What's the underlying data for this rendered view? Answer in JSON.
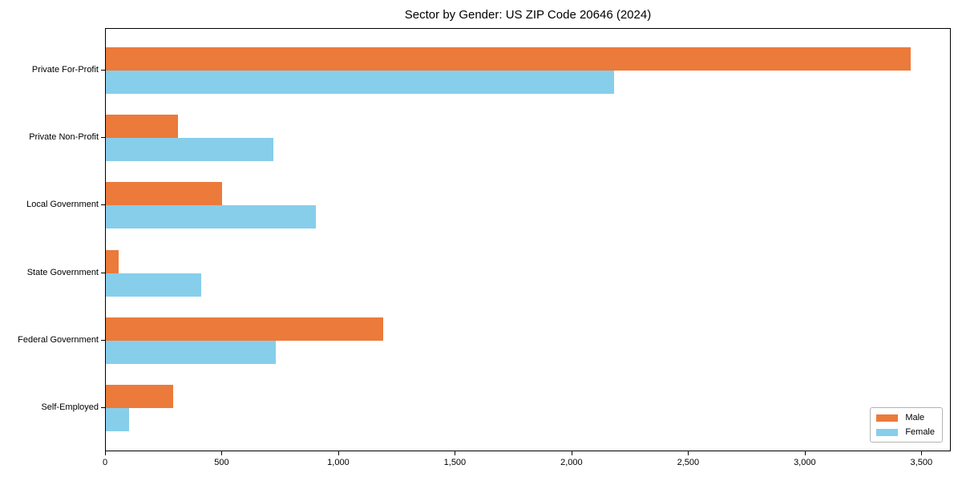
{
  "chart_data": {
    "type": "bar",
    "orientation": "horizontal",
    "title": "Sector by Gender: US ZIP Code 20646 (2024)",
    "xlabel": "",
    "ylabel": "",
    "categories": [
      "Private For-Profit",
      "Private Non-Profit",
      "Local Government",
      "State Government",
      "Federal Government",
      "Self-Employed"
    ],
    "series": [
      {
        "name": "Male",
        "color": "#EB7A3B",
        "values": [
          3450,
          310,
          500,
          55,
          1190,
          290
        ]
      },
      {
        "name": "Female",
        "color": "#87CEEB",
        "values": [
          2180,
          720,
          900,
          410,
          730,
          100
        ]
      }
    ],
    "xlim": [
      0,
      3627
    ],
    "xticks": [
      0,
      500,
      1000,
      1500,
      2000,
      2500,
      3000,
      3500
    ],
    "xtick_labels": [
      "0",
      "500",
      "1,000",
      "1,500",
      "2,000",
      "2,500",
      "3,000",
      "3,500"
    ],
    "legend": {
      "position": "lower right",
      "entries": [
        "Male",
        "Female"
      ]
    },
    "grid": false,
    "background_color": "#ffffff",
    "frame_color": "#000000"
  }
}
